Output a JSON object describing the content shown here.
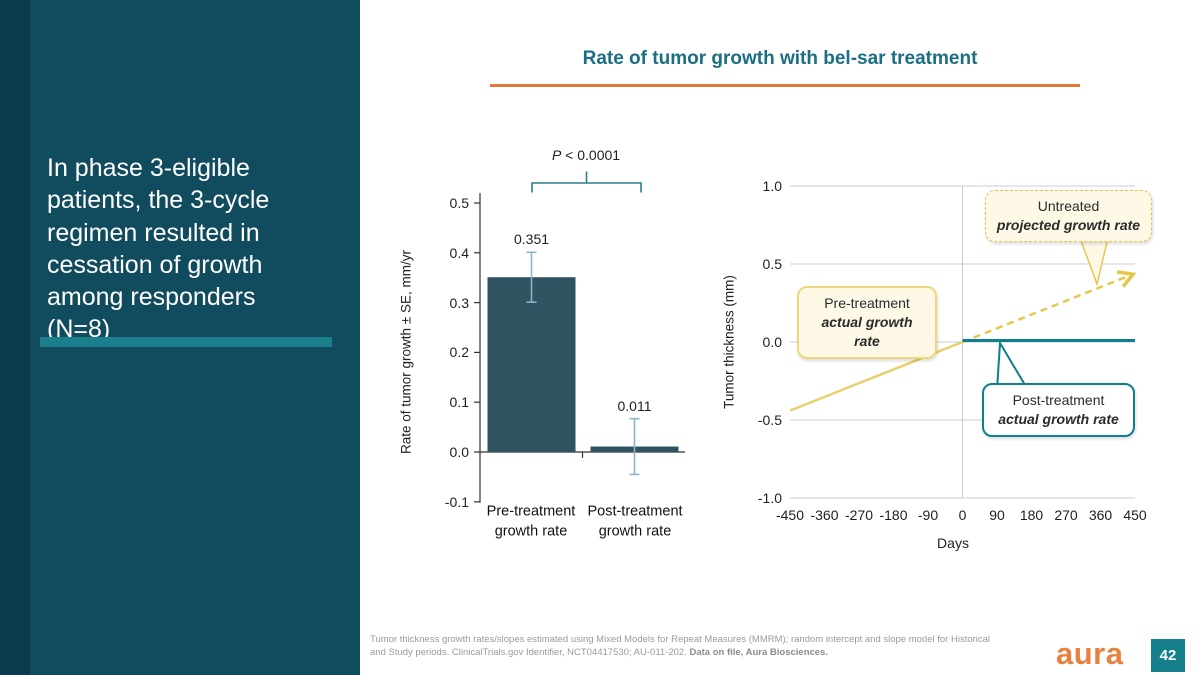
{
  "sidebar": {
    "headline": "In phase 3-eligible patients, the 3-cycle regimen resulted in cessation of growth among responders (N=8)"
  },
  "title": "Rate of tumor growth with bel-sar treatment",
  "footnote": {
    "text": "Tumor thickness growth rates/slopes estimated using Mixed Models for Repeat Measures (MMRM); random intercept and slope model for Historical and Study periods. ClinicalTrials.gov Identifier, NCT04417530; AU-011-202. ",
    "bold": "Data on file, Aura Biosciences."
  },
  "logo_text": "aura",
  "page_number": "42",
  "colors": {
    "sidebar_bg": "#114b5e",
    "sidebar_strip": "#0b3c4d",
    "accent_teal": "#2a7f8c",
    "title_teal": "#1c6e84",
    "title_underline_orange": "#e0793a",
    "bar_fill": "#2f5361",
    "error_bar": "#8ab8c9",
    "yellow_line": "#e9d06e",
    "yellow_dashed": "#e4c84e",
    "teal_line": "#0d7f8f",
    "callout_yellow_bg": "#fdf9e6",
    "callout_yellow_border": "#ecd77c",
    "grid": "#c9ced2",
    "logo_orange": "#e8813b"
  },
  "chart_data": [
    {
      "type": "bar",
      "ylabel": "Rate of tumor growth ± SE, mm/yr",
      "categories": [
        "Pre-treatment growth rate",
        "Post-treatment growth rate"
      ],
      "values": [
        0.351,
        0.011
      ],
      "value_labels": [
        "0.351",
        "0.011"
      ],
      "standard_errors": [
        0.05,
        0.056
      ],
      "yticks": [
        0.5,
        0.4,
        0.3,
        0.2,
        0.1,
        0.0,
        -0.1
      ],
      "ylim": [
        -0.1,
        0.5
      ],
      "significance": "P < 0.0001",
      "grid": false,
      "legend": "none"
    },
    {
      "type": "line",
      "xlabel": "Days",
      "ylabel": "Tumor  thickness  (mm)",
      "xticks": [
        -450,
        -360,
        -270,
        -180,
        -90,
        0,
        90,
        180,
        270,
        360,
        450
      ],
      "yticks": [
        1.0,
        0.5,
        0.0,
        -0.5,
        -1.0
      ],
      "xlim": [
        -450,
        450
      ],
      "ylim": [
        -1.0,
        1.0
      ],
      "grid": true,
      "legend": "callouts",
      "series": [
        {
          "name": "Pre-treatment actual growth rate",
          "style": "solid",
          "color_key": "yellow_line",
          "width": 2.5,
          "points": [
            [
              -450,
              -0.44
            ],
            [
              0,
              0
            ]
          ]
        },
        {
          "name": "Untreated projected growth rate",
          "style": "dashed_arrow",
          "color_key": "yellow_dashed",
          "width": 2.5,
          "points": [
            [
              0,
              0
            ],
            [
              440,
              0.43
            ]
          ]
        },
        {
          "name": "Post-treatment actual growth rate",
          "style": "solid",
          "color_key": "teal_line",
          "width": 3,
          "points": [
            [
              0,
              0.01
            ],
            [
              450,
              0.01
            ]
          ]
        }
      ]
    }
  ],
  "callouts": [
    {
      "line1": "Untreated",
      "line2": "projected growth rate"
    },
    {
      "line1": "Pre-treatment",
      "line2": "actual growth rate"
    },
    {
      "line1": "Post-treatment",
      "line2": "actual growth rate"
    }
  ]
}
